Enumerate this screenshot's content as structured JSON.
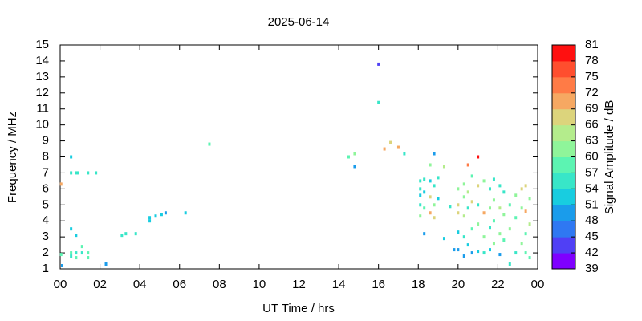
{
  "chart_data": {
    "type": "scatter",
    "title": "2025-06-14",
    "x_label": "UT Time / hrs",
    "y_label": "Frequency / MHz",
    "xlim": [
      0,
      24
    ],
    "ylim": [
      1,
      15
    ],
    "xticks": [
      {
        "value": 0,
        "label": "00"
      },
      {
        "value": 2,
        "label": "02"
      },
      {
        "value": 4,
        "label": "04"
      },
      {
        "value": 6,
        "label": "06"
      },
      {
        "value": 8,
        "label": "08"
      },
      10,
      12,
      14,
      16,
      18,
      20,
      22,
      {
        "value": 24,
        "label": "00"
      }
    ],
    "yticks": [
      1,
      2,
      3,
      4,
      5,
      6,
      7,
      8,
      9,
      10,
      11,
      12,
      13,
      14,
      15
    ],
    "colorbar": {
      "label": "Signal Amplitude / dB",
      "lim": [
        39,
        81
      ],
      "ticks": [
        39,
        42,
        45,
        48,
        51,
        54,
        57,
        60,
        63,
        66,
        69,
        72,
        75,
        78,
        81
      ],
      "colors": [
        "#7f00ff",
        "#5040f5",
        "#2f78f2",
        "#1a9ceb",
        "#18cde0",
        "#38e6c8",
        "#5cf4b2",
        "#8ff59a",
        "#b4ec8c",
        "#dcd47c",
        "#f6a862",
        "#ff7b46",
        "#ff4e2e",
        "#ff1010"
      ]
    },
    "x": [
      0.05,
      0.05,
      0.1,
      0.55,
      0.55,
      0.8,
      0.9,
      1.4,
      1.8,
      0.55,
      0.8,
      0.55,
      0.55,
      0.8,
      0.8,
      1.1,
      1.1,
      1.4,
      1.4,
      2.3,
      3.1,
      3.3,
      3.8,
      4.5,
      4.5,
      4.8,
      5.1,
      5.3,
      6.3,
      7.5,
      14.5,
      14.8,
      14.8,
      16,
      16,
      16.3,
      16.6,
      17,
      17.3,
      18.1,
      18.1,
      18.1,
      18.1,
      18.1,
      18.3,
      18.3,
      18.3,
      18.3,
      18.6,
      18.6,
      18.6,
      18.6,
      18.8,
      18.8,
      18.8,
      18.8,
      19,
      19,
      19.3,
      19.3,
      19.6,
      19.8,
      20,
      20,
      20,
      20,
      20,
      20.3,
      20.3,
      20.3,
      20.3,
      20.3,
      20.5,
      20.5,
      20.5,
      20.5,
      20.7,
      20.7,
      20.7,
      20.7,
      21,
      21,
      21,
      21,
      21,
      21.3,
      21.3,
      21.3,
      21.3,
      21.6,
      21.6,
      21.6,
      21.6,
      21.8,
      21.8,
      21.8,
      21.8,
      22.1,
      22.1,
      22.1,
      22.1,
      22.3,
      22.3,
      22.3,
      22.6,
      22.6,
      22.6,
      22.9,
      22.9,
      22.9,
      23.2,
      23.2,
      23.2,
      23.4,
      23.4,
      23.4,
      23.4,
      23.6,
      23.6,
      23.6
    ],
    "y": [
      6.3,
      1.9,
      1.2,
      8,
      7,
      7,
      7,
      7,
      7,
      3.5,
      3.1,
      2,
      1.8,
      2,
      1.7,
      2.4,
      2,
      2,
      1.7,
      1.3,
      3.1,
      3.2,
      3.2,
      4,
      4.2,
      4.3,
      4.4,
      4.5,
      4.5,
      8.8,
      8,
      8.2,
      7.4,
      13.8,
      11.4,
      8.5,
      8.9,
      8.6,
      8.2,
      6.5,
      6,
      5.6,
      5,
      4.3,
      6.6,
      5.8,
      4.8,
      3.2,
      7.5,
      6.5,
      5.5,
      4.5,
      8.2,
      6.2,
      5,
      4.2,
      6.7,
      5.4,
      7.4,
      2.9,
      4.9,
      2.2,
      6,
      5,
      4.5,
      3.3,
      2.2,
      6.3,
      5.5,
      4.3,
      3,
      1.8,
      7.5,
      5.8,
      4.8,
      2.5,
      6.8,
      5.2,
      3.5,
      2,
      8,
      6.2,
      5,
      3.8,
      2.1,
      6.5,
      4.5,
      3,
      2,
      6,
      4.8,
      3.6,
      2.2,
      6.6,
      5.3,
      4,
      2.6,
      6.2,
      4.8,
      3.2,
      1.9,
      5.8,
      4.4,
      2.8,
      5,
      3.5,
      1.3,
      5.6,
      4.2,
      2,
      6,
      4.8,
      2.6,
      6.2,
      4.6,
      3.2,
      2,
      5.4,
      3.8,
      1.7
    ],
    "z": [
      70,
      57,
      50,
      52,
      55,
      55,
      55,
      55,
      55,
      52,
      52,
      57,
      56,
      55,
      57,
      58,
      56,
      58,
      57,
      50,
      55,
      55,
      55,
      52,
      52,
      52,
      52,
      50,
      52,
      57,
      57,
      60,
      48,
      44,
      56,
      70,
      66,
      70,
      54,
      54,
      55,
      52,
      56,
      60,
      54,
      52,
      57,
      50,
      60,
      52,
      66,
      70,
      50,
      55,
      60,
      68,
      54,
      52,
      64,
      52,
      56,
      50,
      60,
      66,
      68,
      52,
      48,
      62,
      60,
      65,
      55,
      50,
      72,
      64,
      54,
      52,
      58,
      66,
      58,
      50,
      78,
      68,
      56,
      62,
      52,
      62,
      70,
      60,
      56,
      56,
      60,
      56,
      52,
      54,
      62,
      58,
      60,
      55,
      64,
      60,
      50,
      54,
      60,
      58,
      58,
      60,
      56,
      60,
      57,
      55,
      68,
      62,
      60,
      66,
      70,
      58,
      57,
      62,
      64,
      58
    ]
  }
}
